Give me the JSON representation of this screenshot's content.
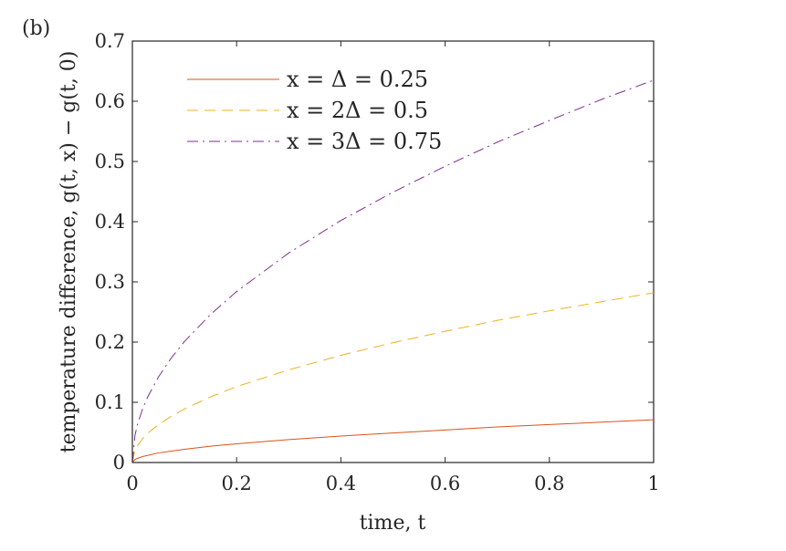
{
  "panel_label": "(b)",
  "chart_data": {
    "type": "line",
    "xlabel": "time, t",
    "ylabel": "temperature difference, g(t, x) − g(t, 0)",
    "xlim": [
      0,
      1
    ],
    "ylim": [
      0,
      0.7
    ],
    "x_ticks": [
      "0",
      "0.2",
      "0.4",
      "0.6",
      "0.8",
      "1"
    ],
    "y_ticks": [
      "0",
      "0.1",
      "0.2",
      "0.3",
      "0.4",
      "0.5",
      "0.6",
      "0.7"
    ],
    "grid": false,
    "legend_position": "top-left",
    "x": [
      0,
      0.005,
      0.01,
      0.02,
      0.03,
      0.05,
      0.075,
      0.1,
      0.15,
      0.2,
      0.3,
      0.4,
      0.5,
      0.6,
      0.7,
      0.8,
      0.9,
      1.0
    ],
    "series": [
      {
        "name": "x = Δ = 0.25",
        "color": "#d95319",
        "dash": "solid",
        "values": [
          0,
          0.005,
          0.007,
          0.01,
          0.012,
          0.016,
          0.019,
          0.022,
          0.027,
          0.031,
          0.038,
          0.044,
          0.049,
          0.054,
          0.059,
          0.063,
          0.067,
          0.071
        ]
      },
      {
        "name": "x = 2Δ = 0.5",
        "color": "#edb120",
        "dash": "dashed",
        "values": [
          0,
          0.02,
          0.028,
          0.04,
          0.049,
          0.063,
          0.077,
          0.089,
          0.109,
          0.126,
          0.154,
          0.178,
          0.199,
          0.218,
          0.236,
          0.252,
          0.267,
          0.282
        ]
      },
      {
        "name": "x = 3Δ = 0.75",
        "color": "#7e2f8e",
        "dash": "dashdot",
        "values": [
          0,
          0.045,
          0.064,
          0.09,
          0.11,
          0.142,
          0.174,
          0.201,
          0.246,
          0.284,
          0.348,
          0.402,
          0.449,
          0.492,
          0.532,
          0.568,
          0.603,
          0.635
        ]
      }
    ]
  }
}
